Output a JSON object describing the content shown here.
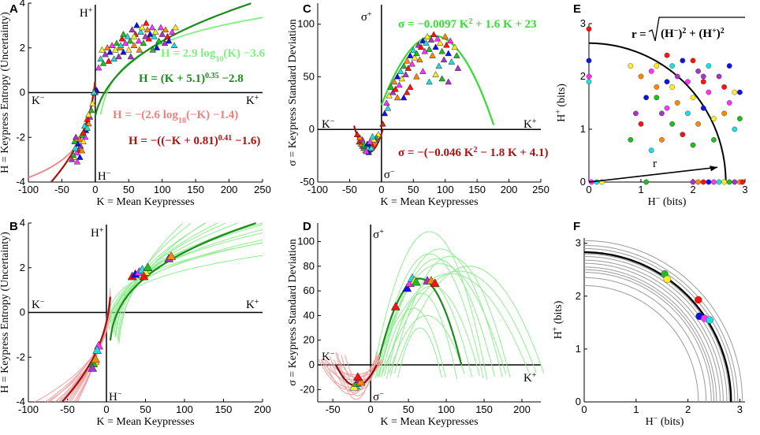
{
  "chart_data": [
    {
      "panel": "A",
      "type": "scatter",
      "xlabel": "K = Mean Keypresses",
      "ylabel": "H = Keypress Entropy (Uncertainty)",
      "xlim": [
        -100,
        250
      ],
      "ylim": [
        -4,
        4
      ],
      "xticks": [
        "-100",
        "-50",
        "0",
        "50",
        "100",
        "150",
        "200",
        "250"
      ],
      "yticks": [
        "-4",
        "-2",
        "0",
        "2",
        "4"
      ],
      "quadrant_labels": {
        "top": "H⁺",
        "bottom": "H⁻",
        "left": "K⁻",
        "right": "K⁺"
      },
      "equations": [
        {
          "text": "H = 2.9 log₁₀(K) −3.6",
          "color": "#80ee80"
        },
        {
          "text": "H = (K + 5.1)^0.35 −2.8",
          "color": "#1a8a1a"
        },
        {
          "text": "H = −(2.6 log₁₀(−K) −1.4)",
          "color": "#f08080"
        },
        {
          "text": "H = −((−K + 0.81)^0.41 −1.6)",
          "color": "#b01010"
        }
      ],
      "series": [
        {
          "name": "positive log fit",
          "color": "#80ee80",
          "x_range": [
            8,
            250
          ]
        },
        {
          "name": "positive power fit",
          "color": "#1a8a1a",
          "x_range": [
            0,
            250
          ]
        },
        {
          "name": "negative log fit",
          "color": "#f08080",
          "x_range": [
            -100,
            -4
          ]
        },
        {
          "name": "negative power fit",
          "color": "#b01010",
          "x_range": [
            -100,
            -1
          ]
        }
      ],
      "points_positive": [
        [
          0,
          0
        ],
        [
          2,
          0.1
        ],
        [
          5,
          1.1
        ],
        [
          8,
          1.5
        ],
        [
          10,
          1.9
        ],
        [
          12,
          1.3
        ],
        [
          15,
          1.7
        ],
        [
          18,
          2.0
        ],
        [
          20,
          1.4
        ],
        [
          22,
          1.8
        ],
        [
          25,
          2.1
        ],
        [
          28,
          1.5
        ],
        [
          30,
          1.9
        ],
        [
          32,
          2.2
        ],
        [
          35,
          1.6
        ],
        [
          37,
          2.0
        ],
        [
          40,
          2.4
        ],
        [
          42,
          1.8
        ],
        [
          45,
          2.2
        ],
        [
          48,
          2.5
        ],
        [
          50,
          1.9
        ],
        [
          52,
          2.3
        ],
        [
          55,
          2.8
        ],
        [
          58,
          2.1
        ],
        [
          60,
          2.6
        ],
        [
          62,
          3.0
        ],
        [
          65,
          2.3
        ],
        [
          68,
          2.7
        ],
        [
          70,
          2.9
        ],
        [
          72,
          2.2
        ],
        [
          75,
          2.5
        ],
        [
          78,
          2.8
        ],
        [
          80,
          2.4
        ],
        [
          82,
          2.6
        ],
        [
          85,
          2.9
        ],
        [
          88,
          2.5
        ],
        [
          90,
          2.7
        ],
        [
          95,
          2.3
        ],
        [
          100,
          2.6
        ],
        [
          105,
          2.8
        ],
        [
          108,
          2.5
        ],
        [
          110,
          2.3
        ],
        [
          115,
          2.7
        ],
        [
          118,
          2.1
        ],
        [
          120,
          2.9
        ],
        [
          42,
          2.6
        ],
        [
          53,
          1.6
        ],
        [
          66,
          1.9
        ],
        [
          76,
          3.1
        ],
        [
          92,
          2.0
        ],
        [
          98,
          2.9
        ],
        [
          38,
          2.1
        ],
        [
          58,
          2.5
        ],
        [
          86,
          1.9
        ],
        [
          104,
          2.2
        ]
      ],
      "points_negative": [
        [
          -2,
          0
        ],
        [
          -4,
          -0.5
        ],
        [
          -6,
          -0.8
        ],
        [
          -8,
          -1.1
        ],
        [
          -10,
          -1.4
        ],
        [
          -12,
          -1.2
        ],
        [
          -14,
          -1.7
        ],
        [
          -15,
          -2.0
        ],
        [
          -16,
          -1.5
        ],
        [
          -18,
          -2.2
        ],
        [
          -20,
          -1.9
        ],
        [
          -22,
          -2.4
        ],
        [
          -24,
          -2.1
        ],
        [
          -25,
          -2.6
        ],
        [
          -26,
          -2.3
        ],
        [
          -28,
          -2.7
        ],
        [
          -30,
          -2.5
        ],
        [
          -32,
          -2.9
        ],
        [
          -33,
          -2.8
        ],
        [
          -35,
          -3.0
        ],
        [
          -20,
          -2.6
        ],
        [
          -18,
          -1.8
        ],
        [
          -23,
          -2.9
        ],
        [
          -27,
          -3.1
        ],
        [
          -12,
          -1.6
        ],
        [
          -10,
          -1.0
        ],
        [
          -31,
          -2.2
        ],
        [
          -29,
          -2.0
        ]
      ]
    },
    {
      "panel": "B",
      "type": "line",
      "xlabel": "K = Mean Keypresses",
      "ylabel": "H = Keypress Entropy (Uncertainty)",
      "xlim": [
        -100,
        200
      ],
      "ylim": [
        -4,
        4
      ],
      "xticks": [
        "-100",
        "-50",
        "0",
        "50",
        "100",
        "150",
        "200"
      ],
      "yticks": [
        "-4",
        "-2",
        "0",
        "2",
        "4"
      ],
      "quadrant_labels": {
        "top": "H⁺",
        "bottom": "H⁻",
        "left": "K⁻",
        "right": "K⁺"
      },
      "series": [
        {
          "name": "individual positive fits",
          "color": "#90ee90",
          "count": 16
        },
        {
          "name": "mean positive fit",
          "color": "#1a8a1a"
        },
        {
          "name": "individual negative fits",
          "color": "#f0a0a0",
          "count": 16
        },
        {
          "name": "mean negative fit",
          "color": "#a01010"
        }
      ],
      "markers_positive": [
        [
          33,
          1.6
        ],
        [
          37,
          1.7
        ],
        [
          42,
          1.8
        ],
        [
          46,
          1.9
        ],
        [
          50,
          1.8
        ],
        [
          53,
          2.0
        ],
        [
          80,
          2.4
        ],
        [
          83,
          2.5
        ],
        [
          48,
          1.6
        ]
      ],
      "markers_negative": [
        [
          -10,
          -1.5
        ],
        [
          -12,
          -1.7
        ],
        [
          -15,
          -2.2
        ],
        [
          -17,
          -2.3
        ],
        [
          -18,
          -2.5
        ],
        [
          -14,
          -2.1
        ]
      ]
    },
    {
      "panel": "C",
      "type": "scatter",
      "xlabel": "K = Mean Keypresses",
      "ylabel": "σ = Keypress Standard Deviation",
      "xlim": [
        -100,
        250
      ],
      "ylim": [
        -50,
        120
      ],
      "xticks": [
        "-100",
        "-50",
        "0",
        "50",
        "100",
        "150",
        "200",
        "250"
      ],
      "yticks": [
        "-50",
        "0",
        "50",
        "100"
      ],
      "quadrant_labels": {
        "top": "σ⁺",
        "bottom": "σ⁻",
        "left": "K⁻",
        "right": "K⁺"
      },
      "equations": [
        {
          "text": "σ = −0.0097 K² + 1.6 K + 23",
          "color": "#33dd33"
        },
        {
          "text": "σ = −(−0.046 K² − 1.8 K + 4.1)",
          "color": "#b01010"
        }
      ],
      "series": [
        {
          "name": "positive quadratic fit",
          "color": "#33dd33",
          "coef": [
            -0.0097,
            1.6,
            23
          ],
          "x_range": [
            0,
            176
          ]
        },
        {
          "name": "negative quadratic fit",
          "color": "#b01010",
          "coef": [
            0.046,
            1.8,
            -4.1
          ],
          "x_range": [
            -43,
            2
          ]
        }
      ],
      "points_positive": [
        [
          2,
          5
        ],
        [
          5,
          15
        ],
        [
          8,
          25
        ],
        [
          10,
          20
        ],
        [
          12,
          32
        ],
        [
          15,
          40
        ],
        [
          18,
          35
        ],
        [
          20,
          45
        ],
        [
          22,
          38
        ],
        [
          25,
          50
        ],
        [
          28,
          42
        ],
        [
          30,
          55
        ],
        [
          32,
          48
        ],
        [
          35,
          60
        ],
        [
          38,
          52
        ],
        [
          40,
          65
        ],
        [
          42,
          58
        ],
        [
          45,
          70
        ],
        [
          48,
          62
        ],
        [
          50,
          75
        ],
        [
          52,
          68
        ],
        [
          55,
          72
        ],
        [
          58,
          80
        ],
        [
          60,
          66
        ],
        [
          62,
          78
        ],
        [
          65,
          84
        ],
        [
          68,
          74
        ],
        [
          70,
          82
        ],
        [
          72,
          88
        ],
        [
          75,
          76
        ],
        [
          78,
          85
        ],
        [
          80,
          70
        ],
        [
          82,
          90
        ],
        [
          85,
          78
        ],
        [
          88,
          86
        ],
        [
          90,
          60
        ],
        [
          92,
          82
        ],
        [
          95,
          74
        ],
        [
          98,
          66
        ],
        [
          100,
          88
        ],
        [
          102,
          80
        ],
        [
          105,
          72
        ],
        [
          108,
          84
        ],
        [
          110,
          64
        ],
        [
          115,
          78
        ],
        [
          118,
          70
        ],
        [
          120,
          58
        ],
        [
          55,
          50
        ],
        [
          45,
          40
        ],
        [
          35,
          30
        ],
        [
          65,
          55
        ],
        [
          75,
          45
        ],
        [
          85,
          52
        ],
        [
          95,
          48
        ],
        [
          105,
          45
        ],
        [
          25,
          30
        ],
        [
          40,
          35
        ]
      ],
      "points_negative": [
        [
          -5,
          -5
        ],
        [
          -8,
          -8
        ],
        [
          -10,
          -10
        ],
        [
          -12,
          -13
        ],
        [
          -15,
          -15
        ],
        [
          -18,
          -17
        ],
        [
          -20,
          -19
        ],
        [
          -22,
          -18
        ],
        [
          -25,
          -20
        ],
        [
          -28,
          -18
        ],
        [
          -30,
          -16
        ],
        [
          -32,
          -14
        ],
        [
          -35,
          -12
        ],
        [
          -20,
          -22
        ],
        [
          -24,
          -21
        ],
        [
          -16,
          -18
        ],
        [
          -12,
          -10
        ],
        [
          -27,
          -15
        ],
        [
          -30,
          -10
        ],
        [
          -34,
          -8
        ],
        [
          -38,
          -5
        ],
        [
          -22,
          -14
        ],
        [
          -18,
          -12
        ],
        [
          -14,
          -7
        ]
      ]
    },
    {
      "panel": "D",
      "type": "line",
      "xlabel": "K = Mean Keypresses",
      "ylabel": "σ = Keypress Standard Deviation",
      "xlim": [
        -70,
        225
      ],
      "ylim": [
        -30,
        115
      ],
      "xticks": [
        "-50",
        "0",
        "50",
        "100",
        "150",
        "200"
      ],
      "yticks": [
        "-20",
        "0",
        "20",
        "40",
        "60",
        "80",
        "100"
      ],
      "quadrant_labels": {
        "top": "σ⁺",
        "bottom": "σ⁻",
        "left": "K⁻",
        "right": "K⁺"
      },
      "series": [
        {
          "name": "individual positive fits",
          "color": "#90ee90",
          "count": 15
        },
        {
          "name": "mean positive fit",
          "color": "#1a8a1a"
        },
        {
          "name": "individual negative fits",
          "color": "#f0a0a0",
          "count": 14
        },
        {
          "name": "mean negative fit",
          "color": "#8b1010"
        }
      ],
      "markers_positive": [
        [
          33,
          47
        ],
        [
          48,
          62
        ],
        [
          52,
          66
        ],
        [
          55,
          70
        ],
        [
          58,
          68
        ],
        [
          60,
          67
        ],
        [
          75,
          68
        ],
        [
          80,
          68
        ],
        [
          85,
          66
        ]
      ],
      "markers_negative": [
        [
          -20,
          -17
        ],
        [
          -22,
          -18
        ],
        [
          -18,
          -15
        ],
        [
          -15,
          -12
        ],
        [
          -13,
          -14
        ],
        [
          -17,
          -10
        ]
      ]
    },
    {
      "panel": "E",
      "type": "scatter",
      "xlabel": "H⁻ (bits)",
      "ylabel": "H⁺ (bits)",
      "xlim": [
        0,
        3
      ],
      "ylim": [
        0,
        3
      ],
      "xticks": [
        "0",
        "1",
        "2",
        "3"
      ],
      "yticks": [
        "0",
        "1",
        "2",
        "3"
      ],
      "radius_formula": "r = √((H⁻)² + (H⁺)²)",
      "radius_label": "r",
      "radius": 2.63,
      "points": [
        [
          0,
          2.9
        ],
        [
          0,
          2.3
        ],
        [
          0,
          2.0
        ],
        [
          0,
          1.9
        ],
        [
          0.8,
          2.2
        ],
        [
          0.8,
          0.8
        ],
        [
          0.9,
          1.3
        ],
        [
          1.0,
          2.0
        ],
        [
          1.0,
          1.1
        ],
        [
          1.1,
          1.6
        ],
        [
          1.2,
          2.1
        ],
        [
          1.2,
          0.6
        ],
        [
          1.3,
          2.2
        ],
        [
          1.3,
          1.6
        ],
        [
          1.4,
          1.3
        ],
        [
          1.4,
          0.8
        ],
        [
          1.5,
          2.4
        ],
        [
          1.5,
          1.9
        ],
        [
          1.5,
          1.4
        ],
        [
          1.6,
          2.2
        ],
        [
          1.6,
          1.8
        ],
        [
          1.6,
          1.1
        ],
        [
          1.7,
          2.0
        ],
        [
          1.7,
          1.5
        ],
        [
          1.8,
          0.9
        ],
        [
          1.8,
          2.3
        ],
        [
          1.9,
          1.9
        ],
        [
          1.9,
          1.3
        ],
        [
          2.0,
          1.6
        ],
        [
          2.0,
          0.7
        ],
        [
          2.1,
          2.1
        ],
        [
          2.1,
          1.1
        ],
        [
          2.2,
          1.9
        ],
        [
          2.2,
          1.4
        ],
        [
          2.3,
          1.7
        ],
        [
          2.3,
          2.2
        ],
        [
          2.4,
          1.2
        ],
        [
          2.4,
          0.8
        ],
        [
          2.5,
          2.0
        ],
        [
          2.6,
          1.3
        ],
        [
          2.6,
          1.8
        ],
        [
          2.7,
          2.2
        ],
        [
          2.7,
          1.5
        ],
        [
          2.8,
          1.0
        ],
        [
          2.8,
          1.7
        ],
        [
          2.9,
          1.2
        ],
        [
          2.2,
          2.0
        ],
        [
          1.3,
          1.8
        ],
        [
          2.0,
          2.3
        ],
        [
          2.9,
          1.7
        ],
        [
          0.05,
          0
        ],
        [
          0.15,
          0
        ],
        [
          0.25,
          0
        ],
        [
          1.1,
          0
        ],
        [
          2.0,
          0
        ],
        [
          2.1,
          0
        ],
        [
          2.2,
          0
        ],
        [
          2.3,
          0
        ],
        [
          2.4,
          0
        ],
        [
          2.5,
          0
        ],
        [
          2.6,
          0
        ],
        [
          2.7,
          0
        ],
        [
          2.8,
          0
        ],
        [
          2.9,
          0
        ],
        [
          2.95,
          0
        ]
      ]
    },
    {
      "panel": "F",
      "type": "line",
      "xlabel": "H⁻ (bits)",
      "ylabel": "H⁺ (bits)",
      "xlim": [
        0,
        3.1
      ],
      "ylim": [
        0,
        3.1
      ],
      "xticks": [
        "0",
        "1",
        "2",
        "3"
      ],
      "yticks": [
        "0",
        "1",
        "2",
        "3"
      ],
      "mean_radius": 2.83,
      "individual_radii": [
        2.2,
        2.35,
        2.45,
        2.55,
        2.62,
        2.68,
        2.75,
        2.8,
        2.9,
        2.96,
        3.05,
        2.5
      ],
      "markers": [
        [
          1.55,
          2.42
        ],
        [
          1.6,
          2.32
        ],
        [
          2.2,
          1.93
        ],
        [
          2.22,
          1.62
        ],
        [
          2.32,
          1.58
        ],
        [
          2.42,
          1.55
        ]
      ]
    }
  ],
  "palette": [
    "#ff1111",
    "#1111ee",
    "#ff33ff",
    "#22dddd",
    "#ffee22",
    "#22bb22",
    "#aa33cc",
    "#ff8800"
  ]
}
